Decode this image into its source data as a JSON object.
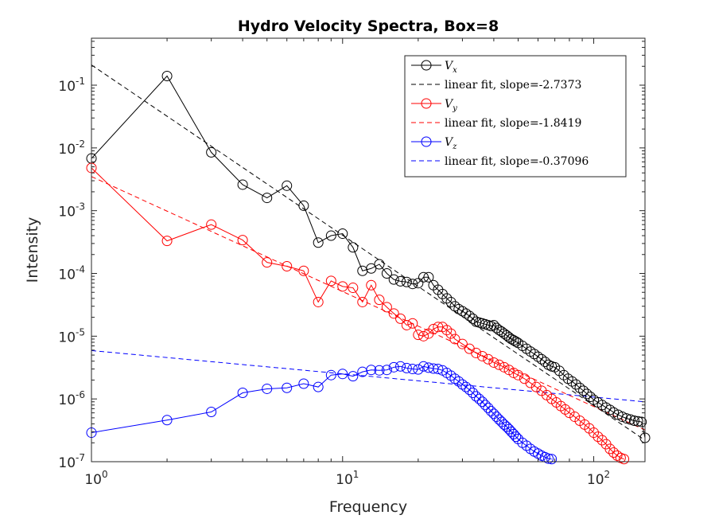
{
  "chart_data": {
    "type": "line",
    "title": "Hydro Velocity Spectra, Box=8",
    "xlabel": "Frequency",
    "ylabel": "Intensity",
    "xscale": "log",
    "yscale": "log",
    "xlim": [
      1,
      160
    ],
    "ylim": [
      1e-07,
      1
    ],
    "x_ticks": [
      {
        "value": 1,
        "base": "10",
        "exp": "0"
      },
      {
        "value": 10,
        "base": "10",
        "exp": "1"
      },
      {
        "value": 100,
        "base": "10",
        "exp": "2"
      }
    ],
    "y_ticks": [
      {
        "value": 1e-07,
        "base": "10",
        "exp": "-7"
      },
      {
        "value": 1e-06,
        "base": "10",
        "exp": "-6"
      },
      {
        "value": 1e-05,
        "base": "10",
        "exp": "-5"
      },
      {
        "value": 0.0001,
        "base": "10",
        "exp": "-4"
      },
      {
        "value": 0.001,
        "base": "10",
        "exp": "-3"
      },
      {
        "value": 0.01,
        "base": "10",
        "exp": "-2"
      },
      {
        "value": 0.1,
        "base": "10",
        "exp": "-1"
      }
    ],
    "grid": false,
    "legend_position": "top-right",
    "series": [
      {
        "name": "V_x",
        "label_main": "V",
        "label_sub": "x",
        "color": "#000000",
        "points": [
          [
            1,
            0.0068
          ],
          [
            2,
            0.14
          ],
          [
            3,
            0.0085
          ],
          [
            4,
            0.0026
          ],
          [
            5,
            0.0016
          ],
          [
            6,
            0.0025
          ],
          [
            7,
            0.0012
          ],
          [
            8,
            0.00031
          ],
          [
            9,
            0.0004
          ],
          [
            10,
            0.00043
          ],
          [
            11,
            0.00026
          ],
          [
            12,
            0.00011
          ],
          [
            13,
            0.00012
          ],
          [
            14,
            0.00014
          ],
          [
            15,
            0.0001
          ],
          [
            16,
            8e-05
          ],
          [
            17,
            7.5e-05
          ],
          [
            18,
            7.3e-05
          ],
          [
            19,
            6.8e-05
          ],
          [
            20,
            7e-05
          ],
          [
            21,
            8.7e-05
          ],
          [
            22,
            8.7e-05
          ],
          [
            23,
            6.5e-05
          ],
          [
            24,
            5.5e-05
          ],
          [
            25,
            4.7e-05
          ],
          [
            26,
            4e-05
          ],
          [
            27,
            3.5e-05
          ],
          [
            28,
            3e-05
          ],
          [
            29,
            2.7e-05
          ],
          [
            30,
            2.5e-05
          ],
          [
            31,
            2.3e-05
          ],
          [
            32,
            2.1e-05
          ],
          [
            33,
            1.9e-05
          ],
          [
            34,
            1.7e-05
          ],
          [
            35,
            1.65e-05
          ],
          [
            36,
            1.6e-05
          ],
          [
            37,
            1.55e-05
          ],
          [
            38,
            1.5e-05
          ],
          [
            39,
            1.45e-05
          ],
          [
            40,
            1.5e-05
          ],
          [
            41,
            1.35e-05
          ],
          [
            42,
            1.25e-05
          ],
          [
            43,
            1.18e-05
          ],
          [
            44,
            1.1e-05
          ],
          [
            45,
            1.03e-05
          ],
          [
            46,
            9.6e-06
          ],
          [
            47,
            9e-06
          ],
          [
            48,
            8.6e-06
          ],
          [
            49,
            8.2e-06
          ],
          [
            50,
            7.8e-06
          ],
          [
            52,
            7e-06
          ],
          [
            54,
            6.3e-06
          ],
          [
            56,
            5.7e-06
          ],
          [
            58,
            5.2e-06
          ],
          [
            60,
            4.7e-06
          ],
          [
            62,
            4.3e-06
          ],
          [
            64,
            3.9e-06
          ],
          [
            66,
            3.5e-06
          ],
          [
            68,
            3.3e-06
          ],
          [
            70,
            3.2e-06
          ],
          [
            73,
            2.8e-06
          ],
          [
            76,
            2.4e-06
          ],
          [
            79,
            2.1e-06
          ],
          [
            82,
            1.9e-06
          ],
          [
            85,
            1.7e-06
          ],
          [
            88,
            1.5e-06
          ],
          [
            91,
            1.35e-06
          ],
          [
            94,
            1.2e-06
          ],
          [
            97,
            1.08e-06
          ],
          [
            100,
            9.7e-07
          ],
          [
            104,
            8.8e-07
          ],
          [
            108,
            8e-07
          ],
          [
            112,
            7.3e-07
          ],
          [
            116,
            6.7e-07
          ],
          [
            120,
            6.1e-07
          ],
          [
            125,
            5.6e-07
          ],
          [
            130,
            5.2e-07
          ],
          [
            135,
            4.9e-07
          ],
          [
            140,
            4.7e-07
          ],
          [
            145,
            4.5e-07
          ],
          [
            150,
            4.4e-07
          ],
          [
            155,
            4.3e-07
          ],
          [
            160,
            2.4e-07
          ]
        ]
      },
      {
        "name": "V_y",
        "label_main": "V",
        "label_sub": "y",
        "color": "#ff0000",
        "points": [
          [
            1,
            0.0048
          ],
          [
            2,
            0.00033
          ],
          [
            3,
            0.0006
          ],
          [
            4,
            0.00034
          ],
          [
            5,
            0.00015
          ],
          [
            6,
            0.00013
          ],
          [
            7,
            0.00011
          ],
          [
            8,
            3.5e-05
          ],
          [
            9,
            7.6e-05
          ],
          [
            10,
            6.2e-05
          ],
          [
            11,
            5.9e-05
          ],
          [
            12,
            3.5e-05
          ],
          [
            13,
            6.5e-05
          ],
          [
            14,
            3.8e-05
          ],
          [
            15,
            2.9e-05
          ],
          [
            16,
            2.3e-05
          ],
          [
            17,
            1.9e-05
          ],
          [
            18,
            1.5e-05
          ],
          [
            19,
            1.6e-05
          ],
          [
            20,
            1.05e-05
          ],
          [
            21,
            1e-05
          ],
          [
            22,
            1.1e-05
          ],
          [
            23,
            1.3e-05
          ],
          [
            24,
            1.4e-05
          ],
          [
            25,
            1.4e-05
          ],
          [
            26,
            1.25e-05
          ],
          [
            27,
            1.1e-05
          ],
          [
            28,
            9e-06
          ],
          [
            30,
            7.5e-06
          ],
          [
            32,
            6.3e-06
          ],
          [
            34,
            5.4e-06
          ],
          [
            36,
            4.8e-06
          ],
          [
            38,
            4.3e-06
          ],
          [
            40,
            3.8e-06
          ],
          [
            42,
            3.5e-06
          ],
          [
            44,
            3.2e-06
          ],
          [
            46,
            2.9e-06
          ],
          [
            48,
            2.6e-06
          ],
          [
            50,
            2.4e-06
          ],
          [
            53,
            2.1e-06
          ],
          [
            56,
            1.8e-06
          ],
          [
            59,
            1.55e-06
          ],
          [
            62,
            1.35e-06
          ],
          [
            65,
            1.15e-06
          ],
          [
            68,
            1e-06
          ],
          [
            71,
            8.8e-07
          ],
          [
            74,
            7.7e-07
          ],
          [
            77,
            6.8e-07
          ],
          [
            80,
            6e-07
          ],
          [
            84,
            5.2e-07
          ],
          [
            88,
            4.5e-07
          ],
          [
            92,
            3.9e-07
          ],
          [
            96,
            3.4e-07
          ],
          [
            100,
            2.9e-07
          ],
          [
            104,
            2.5e-07
          ],
          [
            108,
            2.2e-07
          ],
          [
            112,
            1.9e-07
          ],
          [
            116,
            1.6e-07
          ],
          [
            120,
            1.4e-07
          ],
          [
            124,
            1.25e-07
          ],
          [
            128,
            1.15e-07
          ],
          [
            132,
            1.1e-07
          ]
        ]
      },
      {
        "name": "V_z",
        "label_main": "V",
        "label_sub": "z",
        "color": "#0000ff",
        "points": [
          [
            1,
            2.9e-07
          ],
          [
            2,
            4.6e-07
          ],
          [
            3,
            6.2e-07
          ],
          [
            4,
            1.25e-06
          ],
          [
            5,
            1.45e-06
          ],
          [
            6,
            1.5e-06
          ],
          [
            7,
            1.75e-06
          ],
          [
            8,
            1.55e-06
          ],
          [
            9,
            2.4e-06
          ],
          [
            10,
            2.5e-06
          ],
          [
            11,
            2.3e-06
          ],
          [
            12,
            2.7e-06
          ],
          [
            13,
            2.9e-06
          ],
          [
            14,
            2.85e-06
          ],
          [
            15,
            2.9e-06
          ],
          [
            16,
            3.2e-06
          ],
          [
            17,
            3.3e-06
          ],
          [
            18,
            3.1e-06
          ],
          [
            19,
            3e-06
          ],
          [
            20,
            2.95e-06
          ],
          [
            21,
            3.3e-06
          ],
          [
            22,
            3.15e-06
          ],
          [
            23,
            3.05e-06
          ],
          [
            24,
            3e-06
          ],
          [
            25,
            2.85e-06
          ],
          [
            26,
            2.6e-06
          ],
          [
            27,
            2.35e-06
          ],
          [
            28,
            2.1e-06
          ],
          [
            29,
            1.9e-06
          ],
          [
            30,
            1.7e-06
          ],
          [
            31,
            1.55e-06
          ],
          [
            32,
            1.4e-06
          ],
          [
            33,
            1.25e-06
          ],
          [
            34,
            1.1e-06
          ],
          [
            35,
            1e-06
          ],
          [
            36,
            9e-07
          ],
          [
            37,
            8e-07
          ],
          [
            38,
            7.2e-07
          ],
          [
            39,
            6.4e-07
          ],
          [
            40,
            5.8e-07
          ],
          [
            41,
            5.2e-07
          ],
          [
            42,
            4.7e-07
          ],
          [
            43,
            4.3e-07
          ],
          [
            44,
            3.9e-07
          ],
          [
            45,
            3.6e-07
          ],
          [
            46,
            3.3e-07
          ],
          [
            47,
            3e-07
          ],
          [
            48,
            2.75e-07
          ],
          [
            49,
            2.5e-07
          ],
          [
            50,
            2.3e-07
          ],
          [
            52,
            2e-07
          ],
          [
            54,
            1.8e-07
          ],
          [
            56,
            1.6e-07
          ],
          [
            58,
            1.45e-07
          ],
          [
            60,
            1.35e-07
          ],
          [
            62,
            1.25e-07
          ],
          [
            64,
            1.18e-07
          ],
          [
            66,
            1.12e-07
          ],
          [
            68,
            1.1e-07
          ]
        ]
      }
    ],
    "fits": [
      {
        "name": "linear fit, slope=-2.7373",
        "color": "#000000",
        "from": [
          1,
          0.21
        ],
        "to": [
          160,
          2.2e-07
        ]
      },
      {
        "name": "linear fit, slope=-1.8419",
        "color": "#ff0000",
        "from": [
          1,
          0.0035
        ],
        "to": [
          160,
          3.2e-07
        ]
      },
      {
        "name": "linear fit, slope=-0.37096",
        "color": "#0000ff",
        "from": [
          1,
          5.9e-06
        ],
        "to": [
          160,
          9e-07
        ]
      }
    ],
    "legend": [
      {
        "kind": "series",
        "color": "#000000",
        "main": "V",
        "sub": "x"
      },
      {
        "kind": "fit",
        "color": "#000000",
        "text": "linear fit, slope=-2.7373"
      },
      {
        "kind": "series",
        "color": "#ff0000",
        "main": "V",
        "sub": "y"
      },
      {
        "kind": "fit",
        "color": "#ff0000",
        "text": "linear fit, slope=-1.8419"
      },
      {
        "kind": "series",
        "color": "#0000ff",
        "main": "V",
        "sub": "z"
      },
      {
        "kind": "fit",
        "color": "#0000ff",
        "text": "linear fit, slope=-0.37096"
      }
    ]
  }
}
